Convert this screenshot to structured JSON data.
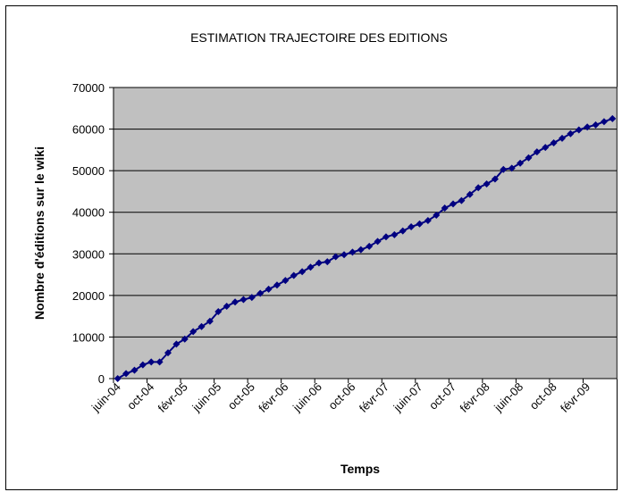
{
  "chart_data": {
    "type": "line",
    "title": "ESTIMATION TRAJECTOIRE DES EDITIONS",
    "x_label": "Temps",
    "y_label": "Nombre d'éditions sur le wiki",
    "categories": [
      "juin-04",
      null,
      null,
      null,
      "oct-04",
      null,
      null,
      null,
      "févr-05",
      null,
      null,
      null,
      "juin-05",
      null,
      null,
      null,
      "oct-05",
      null,
      null,
      null,
      "févr-06",
      null,
      null,
      null,
      "juin-06",
      null,
      null,
      null,
      "oct-06",
      null,
      null,
      null,
      "févr-07",
      null,
      null,
      null,
      "juin-07",
      null,
      null,
      null,
      "oct-07",
      null,
      null,
      null,
      "févr-08",
      null,
      null,
      null,
      "juin-08",
      null,
      null,
      null,
      "oct-08",
      null,
      null,
      null,
      "févr-09",
      null,
      null,
      null
    ],
    "values": [
      0,
      1200,
      2000,
      3300,
      4000,
      4000,
      6200,
      8300,
      9500,
      11300,
      12500,
      13800,
      16100,
      17400,
      18400,
      19000,
      19500,
      20500,
      21500,
      22500,
      23600,
      24800,
      25700,
      26800,
      27800,
      28100,
      29300,
      29800,
      30400,
      31000,
      31800,
      33000,
      34100,
      34600,
      35500,
      36500,
      37200,
      38000,
      39300,
      41000,
      42000,
      42800,
      44300,
      45900,
      46800,
      48000,
      50300,
      50600,
      51800,
      53100,
      54500,
      55600,
      56700,
      57800,
      58900,
      59800,
      60500,
      61000,
      61800,
      62500
    ],
    "color": "#000080",
    "ylim": [
      0,
      70000
    ],
    "yticks": [
      0,
      10000,
      20000,
      30000,
      40000,
      50000,
      60000,
      70000
    ],
    "grid": true
  }
}
